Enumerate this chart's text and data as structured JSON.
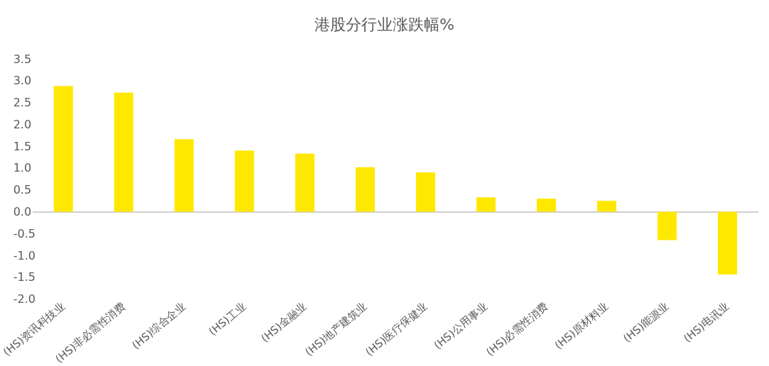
{
  "chart_data": {
    "type": "bar",
    "title": "港股分行业涨跌幅%",
    "categories": [
      "(HS)资讯科技业",
      "(HS)非必需性消费",
      "(HS)综合企业",
      "(HS)工业",
      "(HS)金融业",
      "(HS)地产建筑业",
      "(HS)医疗保健业",
      "(HS)公用事业",
      "(HS)必需性消费",
      "(HS)原材料业",
      "(HS)能源业",
      "(HS)电讯业"
    ],
    "values": [
      2.88,
      2.73,
      1.66,
      1.4,
      1.33,
      1.02,
      0.9,
      0.33,
      0.3,
      0.25,
      -0.65,
      -1.44
    ],
    "color": "#ffe800",
    "ylim": [
      -2,
      3.5
    ],
    "yticks": [
      {
        "value": -2,
        "label": "-2.0"
      },
      {
        "value": -1.5,
        "label": "-1.5"
      },
      {
        "value": -1,
        "label": "-1.0"
      },
      {
        "value": -0.5,
        "label": "-0.5"
      },
      {
        "value": 0,
        "label": "0.0"
      },
      {
        "value": 0.5,
        "label": "0.5"
      },
      {
        "value": 1,
        "label": "1.0"
      },
      {
        "value": 1.5,
        "label": "1.5"
      },
      {
        "value": 2,
        "label": "2.0"
      },
      {
        "value": 2.5,
        "label": "2.5"
      },
      {
        "value": 3,
        "label": "3.0"
      },
      {
        "value": 3.5,
        "label": "3.5"
      }
    ],
    "orientation": "vertical"
  }
}
